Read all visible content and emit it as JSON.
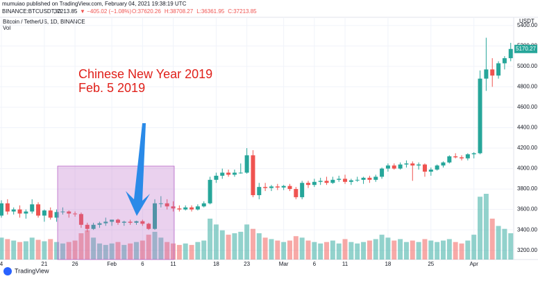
{
  "chart_data": {
    "type": "candlestick",
    "publisher": "mumuiao published on TradingView.com, February 04, 2021 19:38:19 UTC",
    "symbol": "BINANCE:BTCUSDT, D",
    "last": "37213.85",
    "change": "▼ −405.02 (−1.08%)",
    "ohlc_header": [
      "O:37620.26",
      "H:38708.27",
      "L:36361.95",
      "C:37213.85"
    ],
    "title": "Bitcoin / TetherUS, 1D, BINANCE",
    "volume_label": "Vol",
    "axis_unit": "USDT",
    "annotation": [
      "Chinese New Year 2019",
      "Feb. 5 2019"
    ],
    "last_price": {
      "value": 5170.27,
      "label": "5170.27"
    },
    "brand": "TradingView",
    "up_color": "#26a69a",
    "down_color": "#ef5350",
    "grid": true,
    "ylim": [
      3110,
      5480
    ],
    "yticks": [
      {
        "value": 3200,
        "label": "3200.00"
      },
      {
        "value": 3400,
        "label": "3400.00"
      },
      {
        "value": 3600,
        "label": "3600.00"
      },
      {
        "value": 3800,
        "label": "3800.00"
      },
      {
        "value": 4000,
        "label": "4000.00"
      },
      {
        "value": 4200,
        "label": "4200.00"
      },
      {
        "value": 4400,
        "label": "4400.00"
      },
      {
        "value": 4600,
        "label": "4600.00"
      },
      {
        "value": 4800,
        "label": "4800.00"
      },
      {
        "value": 5000,
        "label": "5000.00"
      },
      {
        "value": 5200,
        "label": "5200.00"
      },
      {
        "value": 5400,
        "label": "5400.00"
      }
    ],
    "categories": [
      "4",
      null,
      null,
      null,
      null,
      null,
      null,
      "21",
      null,
      null,
      null,
      null,
      "26",
      null,
      null,
      null,
      null,
      null,
      "Feb",
      null,
      null,
      null,
      null,
      "6",
      null,
      null,
      null,
      null,
      "11",
      null,
      null,
      null,
      null,
      null,
      null,
      "18",
      null,
      null,
      null,
      null,
      "23",
      null,
      null,
      null,
      null,
      null,
      "Mar",
      null,
      null,
      null,
      null,
      "6",
      null,
      null,
      null,
      null,
      "11",
      null,
      null,
      null,
      null,
      null,
      null,
      "18",
      null,
      null,
      null,
      null,
      null,
      null,
      "25",
      null,
      null,
      null,
      null,
      null,
      null,
      "Apr",
      null,
      null,
      null,
      null,
      null,
      null
    ],
    "ohlc": [
      [
        3540,
        3690,
        3520,
        3660
      ],
      [
        3660,
        3700,
        3550,
        3580
      ],
      [
        3580,
        3620,
        3550,
        3600
      ],
      [
        3600,
        3640,
        3520,
        3560
      ],
      [
        3560,
        3600,
        3510,
        3580
      ],
      [
        3580,
        3700,
        3560,
        3650
      ],
      [
        3650,
        3670,
        3520,
        3540
      ],
      [
        3540,
        3600,
        3480,
        3590
      ],
      [
        3590,
        3620,
        3500,
        3520
      ],
      [
        3520,
        3600,
        3480,
        3575
      ],
      [
        3575,
        3620,
        3550,
        3580
      ],
      [
        3580,
        3590,
        3520,
        3560
      ],
      [
        3560,
        3580,
        3530,
        3555
      ],
      [
        3555,
        3570,
        3420,
        3450
      ],
      [
        3450,
        3470,
        3380,
        3410
      ],
      [
        3410,
        3470,
        3400,
        3450
      ],
      [
        3450,
        3480,
        3420,
        3465
      ],
      [
        3465,
        3520,
        3440,
        3480
      ],
      [
        3480,
        3500,
        3440,
        3500
      ],
      [
        3500,
        3510,
        3450,
        3470
      ],
      [
        3470,
        3490,
        3440,
        3480
      ],
      [
        3480,
        3500,
        3450,
        3470
      ],
      [
        3470,
        3490,
        3450,
        3485
      ],
      [
        3485,
        3500,
        3440,
        3460
      ],
      [
        3460,
        3470,
        3400,
        3410
      ],
      [
        3410,
        3700,
        3400,
        3660
      ],
      [
        3660,
        3730,
        3620,
        3660
      ],
      [
        3660,
        3700,
        3600,
        3630
      ],
      [
        3630,
        3680,
        3580,
        3610
      ],
      [
        3610,
        3640,
        3580,
        3600
      ],
      [
        3600,
        3640,
        3590,
        3620
      ],
      [
        3620,
        3640,
        3580,
        3600
      ],
      [
        3600,
        3650,
        3590,
        3630
      ],
      [
        3630,
        3680,
        3620,
        3660
      ],
      [
        3660,
        3920,
        3650,
        3890
      ],
      [
        3890,
        3960,
        3860,
        3930
      ],
      [
        3930,
        4000,
        3900,
        3960
      ],
      [
        3960,
        3990,
        3920,
        3940
      ],
      [
        3940,
        3990,
        3920,
        3960
      ],
      [
        3960,
        4050,
        3950,
        3960
      ],
      [
        3960,
        4200,
        3950,
        4130
      ],
      [
        4130,
        4180,
        3720,
        3740
      ],
      [
        3740,
        3860,
        3700,
        3820
      ],
      [
        3820,
        3860,
        3780,
        3810
      ],
      [
        3810,
        3840,
        3780,
        3825
      ],
      [
        3825,
        3850,
        3790,
        3815
      ],
      [
        3815,
        3840,
        3790,
        3830
      ],
      [
        3830,
        3850,
        3780,
        3800
      ],
      [
        3800,
        3820,
        3700,
        3720
      ],
      [
        3720,
        3880,
        3700,
        3860
      ],
      [
        3860,
        3880,
        3810,
        3840
      ],
      [
        3840,
        3900,
        3820,
        3870
      ],
      [
        3870,
        3910,
        3840,
        3880
      ],
      [
        3880,
        3920,
        3840,
        3860
      ],
      [
        3860,
        3920,
        3850,
        3890
      ],
      [
        3890,
        3930,
        3870,
        3900
      ],
      [
        3900,
        3940,
        3850,
        3870
      ],
      [
        3870,
        3900,
        3840,
        3885
      ],
      [
        3885,
        3920,
        3870,
        3890
      ],
      [
        3890,
        3920,
        3850,
        3910
      ],
      [
        3910,
        3930,
        3860,
        3890
      ],
      [
        3890,
        3940,
        3870,
        3920
      ],
      [
        3920,
        4010,
        3900,
        4000
      ],
      [
        4000,
        4050,
        3970,
        4030
      ],
      [
        4030,
        4050,
        3990,
        4000
      ],
      [
        4000,
        4060,
        3990,
        4040
      ],
      [
        4040,
        4080,
        4010,
        4050
      ],
      [
        4050,
        4070,
        3880,
        4030
      ],
      [
        4030,
        4060,
        3990,
        4040
      ],
      [
        4040,
        4050,
        3920,
        3970
      ],
      [
        3970,
        4010,
        3930,
        3990
      ],
      [
        3990,
        4040,
        3980,
        4030
      ],
      [
        4030,
        4070,
        4010,
        4060
      ],
      [
        4060,
        4130,
        4050,
        4120
      ],
      [
        4120,
        4150,
        4100,
        4110
      ],
      [
        4110,
        4130,
        4080,
        4100
      ],
      [
        4100,
        4150,
        4080,
        4140
      ],
      [
        4140,
        4160,
        4100,
        4150
      ],
      [
        4150,
        4960,
        4140,
        4880
      ],
      [
        4880,
        5280,
        4760,
        4970
      ],
      [
        4970,
        5080,
        4800,
        4910
      ],
      [
        4910,
        5050,
        4880,
        5030
      ],
      [
        5030,
        5100,
        4970,
        5080
      ],
      [
        5080,
        5230,
        5050,
        5170.27
      ]
    ],
    "volume": [
      30,
      28,
      26,
      24,
      25,
      30,
      27,
      25,
      28,
      24,
      22,
      24,
      26,
      36,
      40,
      30,
      22,
      20,
      22,
      24,
      20,
      22,
      24,
      26,
      34,
      38,
      30,
      24,
      22,
      20,
      22,
      20,
      24,
      26,
      56,
      48,
      40,
      34,
      36,
      38,
      48,
      42,
      36,
      30,
      28,
      26,
      24,
      26,
      32,
      30,
      26,
      24,
      22,
      24,
      26,
      22,
      28,
      24,
      22,
      24,
      26,
      28,
      34,
      30,
      26,
      28,
      24,
      26,
      24,
      28,
      26,
      24,
      26,
      28,
      24,
      22,
      26,
      34,
      86,
      90,
      56,
      46,
      42,
      36
    ]
  }
}
